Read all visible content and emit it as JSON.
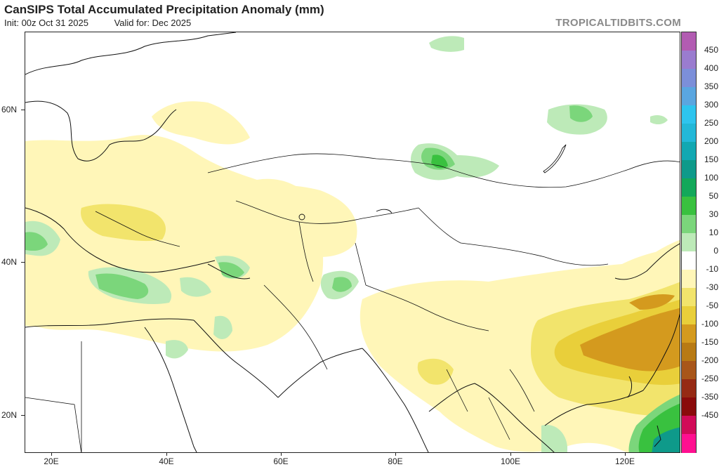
{
  "header": {
    "title": "CanSIPS Total Accumulated Precipitation Anomaly (mm)",
    "init": "Init: 00z Oct 31 2025",
    "valid": "Valid for: Dec 2025",
    "brand": "TROPICALTIDBITS.COM"
  },
  "axes": {
    "lat_labels": [
      "60N",
      "40N",
      "20N"
    ],
    "lon_labels": [
      "20E",
      "40E",
      "60E",
      "80E",
      "100E",
      "120E"
    ]
  },
  "legend": {
    "labels": [
      "450",
      "400",
      "350",
      "300",
      "250",
      "200",
      "150",
      "100",
      "50",
      "30",
      "10",
      "0",
      "-10",
      "-30",
      "-50",
      "-100",
      "-150",
      "-200",
      "-250",
      "-350",
      "-450"
    ],
    "colors": [
      "#b25cb2",
      "#9a7ccf",
      "#7c8fd9",
      "#5aa6e0",
      "#2ec4ee",
      "#23b8d8",
      "#12a8b2",
      "#0e9a8a",
      "#13a85a",
      "#39c13f",
      "#7bd67b",
      "#bdeab8",
      "#ffffff",
      "#fff6b8",
      "#f2e46c",
      "#e9cf3a",
      "#d49a1e",
      "#b87a14",
      "#a8561a",
      "#962a14",
      "#8a0b0b",
      "#d10b58",
      "#ff1090"
    ]
  }
}
